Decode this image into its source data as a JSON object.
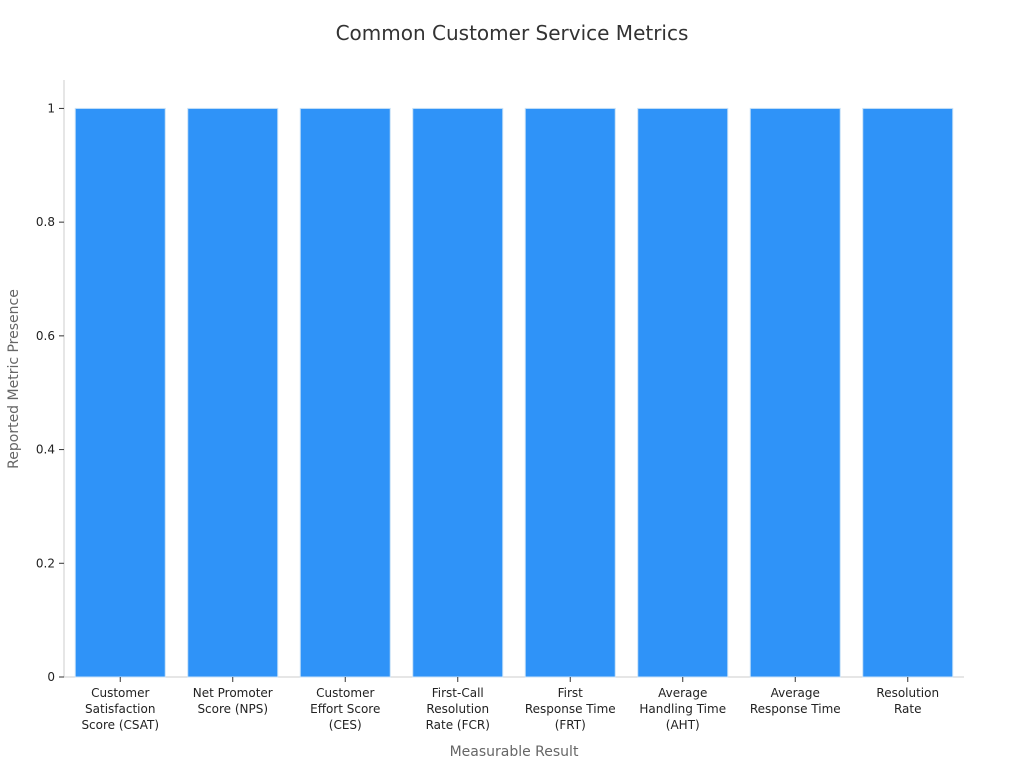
{
  "chart_data": {
    "type": "bar",
    "title": "Common Customer Service Metrics",
    "xlabel": "Measurable Result",
    "ylabel": "Reported Metric Presence",
    "categories": [
      "Customer Satisfaction Score (CSAT)",
      "Net Promoter Score (NPS)",
      "Customer Effort Score (CES)",
      "First-Call Resolution Rate (FCR)",
      "First Response Time (FRT)",
      "Average Handling Time (AHT)",
      "Average Response Time",
      "Resolution Rate"
    ],
    "category_lines": [
      [
        "Customer",
        "Satisfaction",
        "Score (CSAT)"
      ],
      [
        "Net Promoter",
        "Score (NPS)"
      ],
      [
        "Customer",
        "Effort Score",
        "(CES)"
      ],
      [
        "First-Call",
        "Resolution",
        "Rate (FCR)"
      ],
      [
        "First",
        "Response Time",
        "(FRT)"
      ],
      [
        "Average",
        "Handling Time",
        "(AHT)"
      ],
      [
        "Average",
        "Response Time"
      ],
      [
        "Resolution",
        "Rate"
      ]
    ],
    "values": [
      1,
      1,
      1,
      1,
      1,
      1,
      1,
      1
    ],
    "ylim": [
      0,
      1.05
    ],
    "yticks": [
      0,
      0.2,
      0.4,
      0.6,
      0.8,
      1
    ],
    "ytick_labels": [
      "0",
      "0.2",
      "0.4",
      "0.6",
      "0.8",
      "1"
    ],
    "grid": false,
    "bar_color": "#2f93f8"
  }
}
